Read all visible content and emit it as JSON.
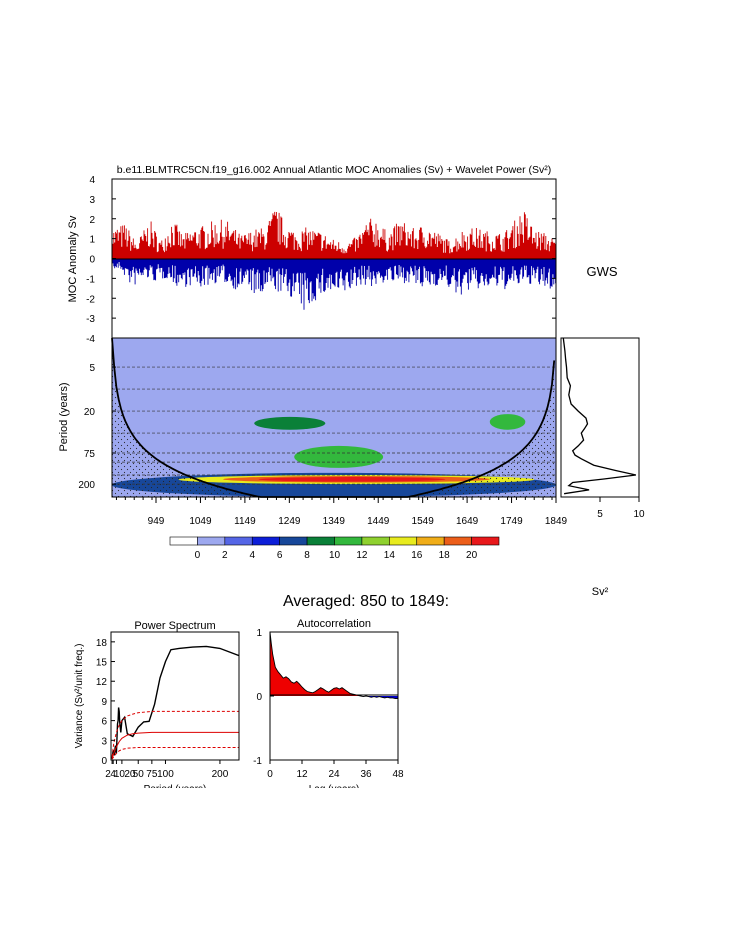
{
  "title": "b.e11.BLMTRC5CN.f19_g16.002 Annual Atlantic MOC Anomalies (Sv) + Wavelet Power (Sv²)",
  "gws_label": "GWS",
  "sv2_label": "Sv²",
  "averaged_label": "Averaged: 850 to 1849:",
  "chart_data": [
    {
      "type": "bar",
      "name": "moc-anomaly",
      "ylabel": "MOC Anomaly Sv",
      "ylim": [
        -4,
        4
      ],
      "yticks": [
        4,
        3,
        2,
        1,
        0,
        -1,
        -2,
        -3,
        -4
      ],
      "xlim": [
        850,
        1849
      ],
      "positive_color": "#cc0000",
      "negative_color": "#0000aa",
      "peaks": [
        {
          "year": 853,
          "value": 1.6
        },
        {
          "year": 880,
          "value": 1.8
        },
        {
          "year": 905,
          "value": 0.8
        },
        {
          "year": 935,
          "value": 2.0
        },
        {
          "year": 960,
          "value": 0.9
        },
        {
          "year": 985,
          "value": 2.1
        },
        {
          "year": 1010,
          "value": 1.2
        },
        {
          "year": 1035,
          "value": 1.6
        },
        {
          "year": 1060,
          "value": 1.7
        },
        {
          "year": 1085,
          "value": 2.0
        },
        {
          "year": 1110,
          "value": 1.9
        },
        {
          "year": 1140,
          "value": 1.2
        },
        {
          "year": 1170,
          "value": 1.5
        },
        {
          "year": 1195,
          "value": 1.6
        },
        {
          "year": 1218,
          "value": 2.7
        },
        {
          "year": 1240,
          "value": 1.8
        },
        {
          "year": 1265,
          "value": 1.4
        },
        {
          "year": 1290,
          "value": 1.6
        },
        {
          "year": 1320,
          "value": 1.4
        },
        {
          "year": 1345,
          "value": 1.0
        },
        {
          "year": 1375,
          "value": 0.8
        },
        {
          "year": 1400,
          "value": 1.1
        },
        {
          "year": 1425,
          "value": 2.0
        },
        {
          "year": 1445,
          "value": 2.1
        },
        {
          "year": 1470,
          "value": 1.3
        },
        {
          "year": 1500,
          "value": 2.0
        },
        {
          "year": 1530,
          "value": 1.5
        },
        {
          "year": 1555,
          "value": 1.8
        },
        {
          "year": 1585,
          "value": 1.3
        },
        {
          "year": 1610,
          "value": 0.9
        },
        {
          "year": 1640,
          "value": 1.5
        },
        {
          "year": 1665,
          "value": 1.6
        },
        {
          "year": 1695,
          "value": 1.4
        },
        {
          "year": 1730,
          "value": 1.3
        },
        {
          "year": 1755,
          "value": 1.9
        },
        {
          "year": 1775,
          "value": 2.6
        },
        {
          "year": 1800,
          "value": 1.5
        },
        {
          "year": 1825,
          "value": 1.3
        },
        {
          "year": 1845,
          "value": 1.0
        }
      ],
      "troughs": [
        {
          "year": 870,
          "value": -0.6
        },
        {
          "year": 895,
          "value": -1.5
        },
        {
          "year": 925,
          "value": -1.0
        },
        {
          "year": 950,
          "value": -1.2
        },
        {
          "year": 975,
          "value": -1.0
        },
        {
          "year": 1000,
          "value": -1.5
        },
        {
          "year": 1025,
          "value": -1.4
        },
        {
          "year": 1050,
          "value": -1.5
        },
        {
          "year": 1075,
          "value": -1.3
        },
        {
          "year": 1100,
          "value": -1.2
        },
        {
          "year": 1130,
          "value": -1.6
        },
        {
          "year": 1155,
          "value": -1.4
        },
        {
          "year": 1180,
          "value": -2.2
        },
        {
          "year": 1205,
          "value": -1.5
        },
        {
          "year": 1230,
          "value": -1.8
        },
        {
          "year": 1258,
          "value": -2.0
        },
        {
          "year": 1283,
          "value": -2.8
        },
        {
          "year": 1310,
          "value": -2.1
        },
        {
          "year": 1335,
          "value": -1.8
        },
        {
          "year": 1360,
          "value": -2.0
        },
        {
          "year": 1390,
          "value": -1.6
        },
        {
          "year": 1415,
          "value": -1.3
        },
        {
          "year": 1440,
          "value": -1.5
        },
        {
          "year": 1465,
          "value": -1.2
        },
        {
          "year": 1490,
          "value": -1.3
        },
        {
          "year": 1520,
          "value": -1.2
        },
        {
          "year": 1545,
          "value": -1.6
        },
        {
          "year": 1575,
          "value": -1.4
        },
        {
          "year": 1600,
          "value": -1.3
        },
        {
          "year": 1625,
          "value": -2.0
        },
        {
          "year": 1655,
          "value": -1.6
        },
        {
          "year": 1680,
          "value": -1.6
        },
        {
          "year": 1710,
          "value": -1.5
        },
        {
          "year": 1740,
          "value": -1.6
        },
        {
          "year": 1765,
          "value": -1.4
        },
        {
          "year": 1790,
          "value": -1.3
        },
        {
          "year": 1815,
          "value": -1.5
        },
        {
          "year": 1840,
          "value": -1.6
        }
      ]
    },
    {
      "type": "heatmap",
      "name": "wavelet-power",
      "ylabel": "Period (years)",
      "ylim": [
        2,
        300
      ],
      "yscale": "log",
      "ytick_labels": [
        "5",
        "20",
        "75",
        "200"
      ],
      "yticks": [
        5,
        20,
        75,
        200
      ],
      "xlim": [
        850,
        1849
      ],
      "xtick_labels": [
        "949",
        "1049",
        "1149",
        "1249",
        "1349",
        "1449",
        "1549",
        "1649",
        "1749",
        "1849"
      ],
      "xticks": [
        949,
        1049,
        1149,
        1249,
        1349,
        1449,
        1549,
        1649,
        1749,
        1849
      ],
      "dashed_periods": [
        5,
        10,
        20,
        40,
        75,
        100,
        150,
        200
      ],
      "levels": [
        0,
        2,
        4,
        6,
        8,
        10,
        12,
        14,
        16,
        18,
        20
      ],
      "level_colors": [
        "#ffffff",
        "#9da8ef",
        "#5566e6",
        "#0c1ed8",
        "#17479a",
        "#0a8038",
        "#33b83d",
        "#8fd12f",
        "#e8eb1e",
        "#f0ad18",
        "#ec5e1a",
        "#e8181b"
      ],
      "background_level_color": "#9da8ef",
      "features": [
        {
          "year_start": 850,
          "year_end": 1849,
          "period_low": 140,
          "period_high": 300,
          "level": 6
        },
        {
          "year_start": 1000,
          "year_end": 1800,
          "period_low": 150,
          "period_high": 200,
          "level": 14
        },
        {
          "year_start": 1100,
          "year_end": 1700,
          "period_low": 155,
          "period_high": 190,
          "level": 18
        },
        {
          "year_start": 1180,
          "year_end": 1600,
          "period_low": 160,
          "period_high": 185,
          "level": 20
        },
        {
          "year_start": 1260,
          "year_end": 1460,
          "period_low": 60,
          "period_high": 120,
          "level": 10
        },
        {
          "year_start": 1170,
          "year_end": 1330,
          "period_low": 24,
          "period_high": 36,
          "level": 8
        },
        {
          "year_start": 1700,
          "year_end": 1780,
          "period_low": 22,
          "period_high": 36,
          "level": 10
        }
      ]
    },
    {
      "type": "line",
      "name": "global-wavelet-spectrum",
      "xlim": [
        0,
        10
      ],
      "xtick_labels": [
        "5",
        "10"
      ],
      "xticks": [
        5,
        10
      ],
      "ylim": [
        2,
        300
      ],
      "yscale": "log",
      "points": [
        {
          "period": 2,
          "power": 0.3
        },
        {
          "period": 3,
          "power": 0.5
        },
        {
          "period": 4,
          "power": 0.6
        },
        {
          "period": 5,
          "power": 0.7
        },
        {
          "period": 7,
          "power": 0.8
        },
        {
          "period": 9,
          "power": 1.2
        },
        {
          "period": 12,
          "power": 1.0
        },
        {
          "period": 16,
          "power": 1.3
        },
        {
          "period": 20,
          "power": 2.2
        },
        {
          "period": 25,
          "power": 3.2
        },
        {
          "period": 30,
          "power": 3.4
        },
        {
          "period": 35,
          "power": 3.0
        },
        {
          "period": 40,
          "power": 2.6
        },
        {
          "period": 50,
          "power": 2.9
        },
        {
          "period": 60,
          "power": 2.2
        },
        {
          "period": 70,
          "power": 1.5
        },
        {
          "period": 80,
          "power": 1.8
        },
        {
          "period": 90,
          "power": 2.6
        },
        {
          "period": 110,
          "power": 4.2
        },
        {
          "period": 130,
          "power": 7.0
        },
        {
          "period": 150,
          "power": 9.6
        },
        {
          "period": 170,
          "power": 5.5
        },
        {
          "period": 190,
          "power": 1.5
        },
        {
          "period": 210,
          "power": 1.0
        },
        {
          "period": 240,
          "power": 3.6
        },
        {
          "period": 270,
          "power": 0.4
        }
      ]
    },
    {
      "type": "line",
      "name": "power-spectrum",
      "title": "Power Spectrum",
      "xlabel": "Period (years)",
      "ylabel": "Variance (Sv²/unit freq.)",
      "xlim": [
        0,
        235
      ],
      "xtick_labels": [
        "2",
        "4",
        "10",
        "20",
        "50",
        "75",
        "100",
        "200"
      ],
      "xticks": [
        2,
        4,
        10,
        20,
        50,
        75,
        100,
        200
      ],
      "ylim": [
        0,
        19.5
      ],
      "yticks": [
        0,
        3,
        6,
        9,
        12,
        15,
        18
      ],
      "series": [
        {
          "name": "",
          "color": "#000000",
          "dash": "",
          "points": [
            [
              2,
              0.2
            ],
            [
              4,
              1.5
            ],
            [
              6,
              0.7
            ],
            [
              8,
              2.2
            ],
            [
              10,
              1.0
            ],
            [
              12,
              5.5
            ],
            [
              13,
              6.0
            ],
            [
              14,
              8.0
            ],
            [
              15,
              7.4
            ],
            [
              16,
              5.8
            ],
            [
              18,
              4.2
            ],
            [
              20,
              6.0
            ],
            [
              25,
              6.5
            ],
            [
              30,
              4.0
            ],
            [
              40,
              3.6
            ],
            [
              50,
              5.0
            ],
            [
              60,
              5.8
            ],
            [
              70,
              5.9
            ],
            [
              80,
              8.5
            ],
            [
              90,
              12.5
            ],
            [
              100,
              15.0
            ],
            [
              110,
              16.8
            ],
            [
              125,
              17.0
            ],
            [
              150,
              17.2
            ],
            [
              175,
              17.3
            ],
            [
              200,
              17.0
            ],
            [
              235,
              15.9
            ]
          ]
        },
        {
          "name": "",
          "color": "#dd0000",
          "dash": "",
          "points": [
            [
              2,
              0.3
            ],
            [
              5,
              1.0
            ],
            [
              10,
              2.0
            ],
            [
              15,
              2.8
            ],
            [
              20,
              3.3
            ],
            [
              30,
              3.8
            ],
            [
              40,
              4.0
            ],
            [
              50,
              4.1
            ],
            [
              75,
              4.2
            ],
            [
              100,
              4.2
            ],
            [
              150,
              4.2
            ],
            [
              200,
              4.2
            ],
            [
              235,
              4.2
            ]
          ]
        },
        {
          "name": "",
          "color": "#dd0000",
          "dash": "3,2",
          "points": [
            [
              2,
              0.5
            ],
            [
              5,
              2.5
            ],
            [
              10,
              4.2
            ],
            [
              15,
              5.3
            ],
            [
              20,
              6.0
            ],
            [
              30,
              6.7
            ],
            [
              40,
              7.0
            ],
            [
              50,
              7.2
            ],
            [
              75,
              7.4
            ],
            [
              100,
              7.4
            ],
            [
              150,
              7.4
            ],
            [
              200,
              7.4
            ],
            [
              235,
              7.4
            ]
          ]
        },
        {
          "name": "",
          "color": "#dd0000",
          "dash": "3,2",
          "points": [
            [
              2,
              0.1
            ],
            [
              5,
              0.5
            ],
            [
              10,
              1.0
            ],
            [
              15,
              1.4
            ],
            [
              20,
              1.6
            ],
            [
              30,
              1.8
            ],
            [
              50,
              1.9
            ],
            [
              100,
              1.9
            ],
            [
              235,
              1.9
            ]
          ]
        }
      ]
    },
    {
      "type": "area",
      "name": "autocorrelation",
      "title": "Autocorrelation",
      "xlabel": "Lag (years)",
      "xlim": [
        0,
        48
      ],
      "xticks": [
        0,
        12,
        24,
        36,
        48
      ],
      "ylim": [
        -1,
        1
      ],
      "yticks": [
        -1,
        0,
        1
      ],
      "positive_color": "#ee0000",
      "negative_color": "#0000cc",
      "points": [
        [
          0,
          1.0
        ],
        [
          0.5,
          0.82
        ],
        [
          1,
          0.65
        ],
        [
          2,
          0.45
        ],
        [
          3,
          0.38
        ],
        [
          4,
          0.33
        ],
        [
          5,
          0.28
        ],
        [
          6,
          0.3
        ],
        [
          7,
          0.27
        ],
        [
          8,
          0.22
        ],
        [
          9,
          0.2
        ],
        [
          10,
          0.23
        ],
        [
          11,
          0.19
        ],
        [
          12,
          0.14
        ],
        [
          13,
          0.1
        ],
        [
          14,
          0.07
        ],
        [
          15,
          0.06
        ],
        [
          16,
          0.05
        ],
        [
          17,
          0.07
        ],
        [
          18,
          0.1
        ],
        [
          19,
          0.13
        ],
        [
          20,
          0.11
        ],
        [
          21,
          0.08
        ],
        [
          22,
          0.06
        ],
        [
          23,
          0.09
        ],
        [
          24,
          0.12
        ],
        [
          25,
          0.13
        ],
        [
          26,
          0.11
        ],
        [
          27,
          0.13
        ],
        [
          28,
          0.1
        ],
        [
          29,
          0.07
        ],
        [
          30,
          0.04
        ],
        [
          31,
          0.03
        ],
        [
          32,
          0.02
        ],
        [
          33,
          0.01
        ],
        [
          34,
          0.0
        ],
        [
          35,
          -0.01
        ],
        [
          36,
          0.0
        ],
        [
          37,
          -0.01
        ],
        [
          38,
          -0.02
        ],
        [
          39,
          -0.01
        ],
        [
          40,
          -0.02
        ],
        [
          41,
          -0.01
        ],
        [
          42,
          -0.02
        ],
        [
          43,
          -0.03
        ],
        [
          44,
          -0.02
        ],
        [
          45,
          -0.03
        ],
        [
          46,
          -0.03
        ],
        [
          47,
          -0.04
        ],
        [
          48,
          -0.04
        ]
      ]
    }
  ]
}
